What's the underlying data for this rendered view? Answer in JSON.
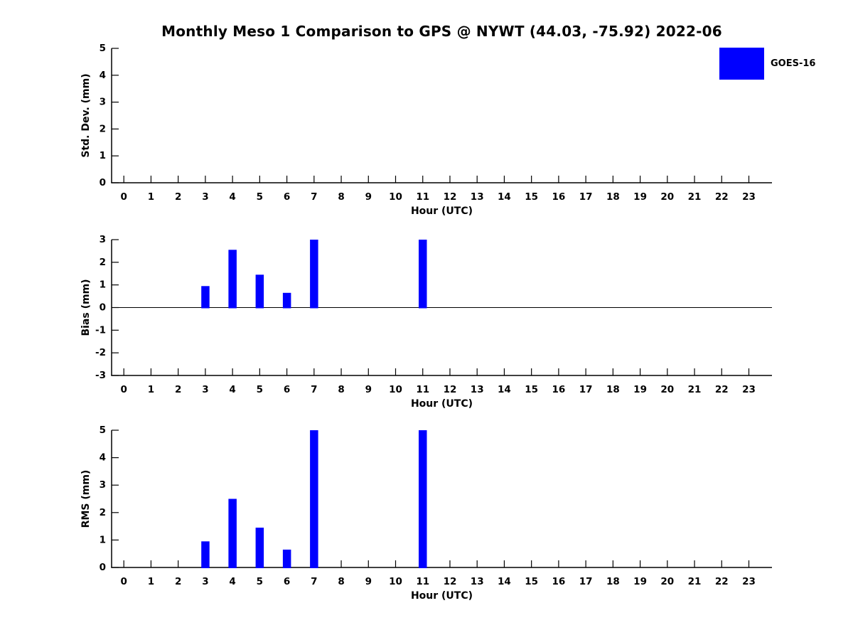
{
  "chart_data": {
    "type": "bar",
    "title": "Monthly Meso 1 Comparison to GPS @ NYWT (44.03, -75.92) 2022-06",
    "series_name": "GOES-16",
    "bar_color": "#0000ff",
    "bar_width_units": 0.3,
    "legend_position": "top-right",
    "grid": false,
    "x": {
      "label": "Hour (UTC)",
      "lim": [
        -0.45,
        23.85
      ],
      "ticks": [
        0,
        1,
        2,
        3,
        4,
        5,
        6,
        7,
        8,
        9,
        10,
        11,
        12,
        13,
        14,
        15,
        16,
        17,
        18,
        19,
        20,
        21,
        22,
        23
      ]
    },
    "subplots": [
      {
        "name": "std-dev",
        "ylabel": "Std. Dev. (mm)",
        "ylim": [
          0,
          5
        ],
        "yticks": [
          0,
          1,
          2,
          3,
          4,
          5
        ],
        "zero_line": false,
        "hours": [],
        "values": []
      },
      {
        "name": "bias",
        "ylabel": "Bias (mm)",
        "ylim": [
          -3,
          3
        ],
        "yticks": [
          -3,
          -2,
          -1,
          0,
          1,
          2,
          3
        ],
        "zero_line": true,
        "hours": [
          3,
          4,
          5,
          6,
          7,
          11
        ],
        "values": [
          0.95,
          2.55,
          1.45,
          0.65,
          3.0,
          3.0
        ]
      },
      {
        "name": "rms",
        "ylabel": "RMS (mm)",
        "ylim": [
          0,
          5
        ],
        "yticks": [
          0,
          1,
          2,
          3,
          4,
          5
        ],
        "zero_line": false,
        "hours": [
          3,
          4,
          5,
          6,
          7,
          11
        ],
        "values": [
          0.95,
          2.5,
          1.45,
          0.65,
          5.0,
          5.0
        ]
      }
    ]
  }
}
